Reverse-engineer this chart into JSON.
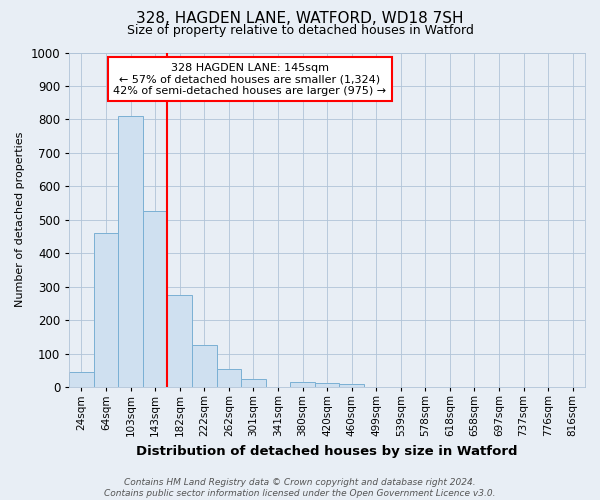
{
  "title1": "328, HAGDEN LANE, WATFORD, WD18 7SH",
  "title2": "Size of property relative to detached houses in Watford",
  "xlabel": "Distribution of detached houses by size in Watford",
  "ylabel": "Number of detached properties",
  "footer1": "Contains HM Land Registry data © Crown copyright and database right 2024.",
  "footer2": "Contains public sector information licensed under the Open Government Licence v3.0.",
  "annotation_line1": "328 HAGDEN LANE: 145sqm",
  "annotation_line2": "← 57% of detached houses are smaller (1,324)",
  "annotation_line3": "42% of semi-detached houses are larger (975) →",
  "bar_labels": [
    "24sqm",
    "64sqm",
    "103sqm",
    "143sqm",
    "182sqm",
    "222sqm",
    "262sqm",
    "301sqm",
    "341sqm",
    "380sqm",
    "420sqm",
    "460sqm",
    "499sqm",
    "539sqm",
    "578sqm",
    "618sqm",
    "658sqm",
    "697sqm",
    "737sqm",
    "776sqm",
    "816sqm"
  ],
  "bar_values": [
    45,
    460,
    810,
    525,
    275,
    125,
    55,
    25,
    0,
    15,
    12,
    8,
    0,
    0,
    0,
    0,
    0,
    0,
    0,
    0,
    0
  ],
  "bar_color": "#cfe0f0",
  "bar_edge_color": "#7ab0d4",
  "red_line_x": 3.5,
  "ylim": [
    0,
    1000
  ],
  "yticks": [
    0,
    100,
    200,
    300,
    400,
    500,
    600,
    700,
    800,
    900,
    1000
  ],
  "fig_bg_color": "#e8eef5",
  "axes_bg_color": "#e8eef5",
  "grid_color": "#b0c4d8",
  "title1_fontsize": 11,
  "title2_fontsize": 9
}
